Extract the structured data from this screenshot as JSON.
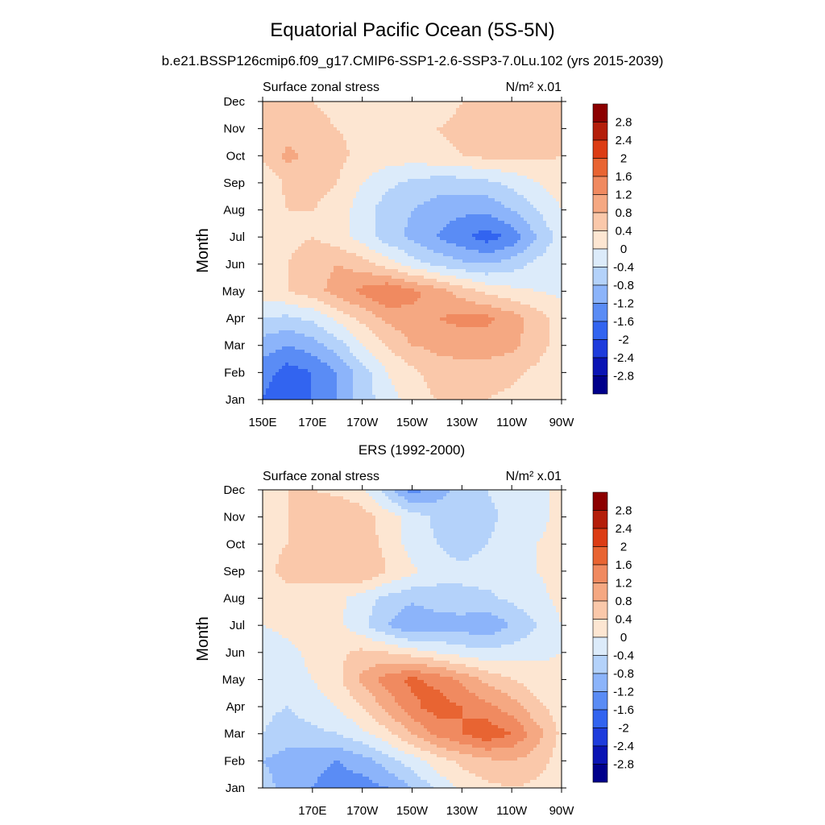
{
  "figure": {
    "title": "Equatorial Pacific Ocean (5S-5N)",
    "subtitle": "b.e21.BSSP126cmip6.f09_g17.CMIP6-SSP1-2.6-SSP3-7.0Lu.102 (yrs 2015-2039)",
    "second_panel_title": "ERS (1992-2000)"
  },
  "colors": {
    "levels": [
      "#00008b",
      "#0a14b4",
      "#1e3cdc",
      "#3264f0",
      "#5a8cf5",
      "#8cb4fa",
      "#b4d2fa",
      "#dcebfa",
      "#fde6d2",
      "#fac8aa",
      "#f5a882",
      "#f08a60",
      "#e86432",
      "#dc3c14",
      "#b41e0a",
      "#8c0000"
    ]
  },
  "chart_data": [
    {
      "type": "heatmap",
      "panel_label_left": "Surface zonal stress",
      "units": "N/m² x.01",
      "ylabel": "Month",
      "x_tick_labels": [
        "150E",
        "170E",
        "170W",
        "150W",
        "130W",
        "110W",
        "90W"
      ],
      "y_tick_labels": [
        "Jan",
        "Feb",
        "Mar",
        "Apr",
        "May",
        "Jun",
        "Jul",
        "Aug",
        "Sep",
        "Oct",
        "Nov",
        "Dec"
      ],
      "x_range_lon_east": [
        150,
        270
      ],
      "colorbar_labels": [
        "2.8",
        "2.4",
        "2",
        "1.6",
        "1.2",
        "0.8",
        "0.4",
        "0",
        "-0.4",
        "-0.8",
        "-1.2",
        "-1.6",
        "-2",
        "-2.4",
        "-2.8"
      ],
      "x_lon_east": [
        150,
        160,
        170,
        180,
        190,
        200,
        210,
        220,
        230,
        240,
        250,
        260,
        270
      ],
      "y_month": [
        1,
        2,
        3,
        4,
        5,
        6,
        7,
        8,
        9,
        10,
        11,
        12
      ],
      "values": [
        [
          -1.6,
          -2.0,
          -1.6,
          -1.2,
          -0.6,
          -0.2,
          0.2,
          0.4,
          0.4,
          0.4,
          0.3,
          0.2,
          0.0
        ],
        [
          -1.4,
          -1.8,
          -1.6,
          -1.2,
          -0.6,
          0.0,
          0.3,
          0.6,
          0.6,
          0.6,
          0.5,
          0.3,
          0.0
        ],
        [
          -1.0,
          -1.2,
          -1.0,
          -0.6,
          0.0,
          0.4,
          0.8,
          0.9,
          1.0,
          1.0,
          0.9,
          0.6,
          0.2
        ],
        [
          -0.4,
          -0.5,
          -0.3,
          0.1,
          0.5,
          0.9,
          1.1,
          1.2,
          1.3,
          1.3,
          1.0,
          0.6,
          0.2
        ],
        [
          0.2,
          0.4,
          0.6,
          1.0,
          1.3,
          1.6,
          1.3,
          1.0,
          0.6,
          0.3,
          0.1,
          0.0,
          -0.1
        ],
        [
          0.2,
          0.4,
          0.6,
          0.8,
          0.6,
          0.2,
          -0.2,
          -0.5,
          -0.7,
          -0.8,
          -0.6,
          -0.3,
          -0.1
        ],
        [
          0.2,
          0.3,
          0.4,
          0.2,
          -0.2,
          -0.6,
          -0.9,
          -1.2,
          -1.5,
          -1.8,
          -1.5,
          -0.8,
          -0.2
        ],
        [
          0.2,
          0.4,
          0.4,
          0.2,
          -0.2,
          -0.6,
          -0.8,
          -1.0,
          -1.1,
          -1.1,
          -0.8,
          -0.4,
          0.0
        ],
        [
          0.0,
          0.5,
          0.6,
          0.4,
          0.0,
          -0.3,
          -0.5,
          -0.6,
          -0.6,
          -0.5,
          -0.3,
          0.0,
          0.2
        ],
        [
          0.5,
          0.9,
          0.7,
          0.5,
          0.3,
          0.2,
          0.2,
          0.3,
          0.4,
          0.5,
          0.5,
          0.5,
          0.4
        ],
        [
          0.6,
          0.6,
          0.5,
          0.4,
          0.3,
          0.2,
          0.2,
          0.4,
          0.5,
          0.6,
          0.6,
          0.5,
          0.4
        ],
        [
          0.5,
          0.5,
          0.4,
          0.3,
          0.2,
          0.1,
          0.1,
          0.2,
          0.4,
          0.5,
          0.6,
          0.5,
          0.4
        ]
      ]
    },
    {
      "type": "heatmap",
      "panel_label_left": "Surface zonal stress",
      "units": "N/m² x.01",
      "ylabel": "Month",
      "x_tick_labels": [
        "170E",
        "170W",
        "150W",
        "130W",
        "110W",
        "90W"
      ],
      "y_tick_labels": [
        "Jan",
        "Feb",
        "Mar",
        "Apr",
        "May",
        "Jun",
        "Jul",
        "Aug",
        "Sep",
        "Oct",
        "Nov",
        "Dec"
      ],
      "x_range_lon_east": [
        150,
        270
      ],
      "colorbar_labels": [
        "2.8",
        "2.4",
        "2",
        "1.6",
        "1.2",
        "0.8",
        "0.4",
        "0",
        "-0.4",
        "-0.8",
        "-1.2",
        "-1.6",
        "-2",
        "-2.4",
        "-2.8"
      ],
      "x_lon_east": [
        150,
        160,
        170,
        180,
        190,
        200,
        210,
        220,
        230,
        240,
        250,
        260,
        270
      ],
      "y_month": [
        1,
        2,
        3,
        4,
        5,
        6,
        7,
        8,
        9,
        10,
        11,
        12
      ],
      "values": [
        [
          -0.6,
          -1.0,
          -1.2,
          -1.4,
          -1.4,
          -1.2,
          -0.8,
          -0.3,
          0.1,
          0.3,
          0.4,
          0.3,
          0.2
        ],
        [
          -0.8,
          -1.0,
          -1.1,
          -1.2,
          -1.0,
          -0.6,
          -0.2,
          0.2,
          0.5,
          0.7,
          0.8,
          0.6,
          0.2
        ],
        [
          -0.4,
          -0.6,
          -0.5,
          -0.4,
          -0.1,
          0.3,
          0.8,
          1.3,
          1.6,
          1.9,
          1.6,
          1.0,
          0.3
        ],
        [
          -0.3,
          -0.4,
          -0.2,
          0.0,
          0.4,
          0.9,
          1.5,
          1.8,
          1.6,
          1.3,
          1.0,
          0.5,
          0.2
        ],
        [
          -0.1,
          -0.2,
          0.0,
          0.3,
          0.9,
          1.4,
          1.7,
          1.5,
          1.1,
          0.7,
          0.4,
          0.2,
          0.1
        ],
        [
          -0.2,
          -0.1,
          0.1,
          0.3,
          0.5,
          0.4,
          0.2,
          0.0,
          -0.2,
          -0.3,
          -0.2,
          -0.1,
          0.0
        ],
        [
          0.0,
          0.1,
          0.2,
          0.1,
          -0.3,
          -0.8,
          -1.2,
          -1.0,
          -1.0,
          -1.1,
          -0.8,
          -0.4,
          0.0
        ],
        [
          0.1,
          0.3,
          0.3,
          0.1,
          -0.2,
          -0.5,
          -0.7,
          -0.6,
          -0.5,
          -0.5,
          -0.3,
          -0.1,
          0.1
        ],
        [
          0.3,
          0.5,
          0.5,
          0.6,
          0.8,
          0.4,
          0.1,
          -0.2,
          -0.3,
          -0.2,
          -0.1,
          0.0,
          0.1
        ],
        [
          0.3,
          0.4,
          0.4,
          0.5,
          0.6,
          0.3,
          -0.2,
          -0.4,
          -0.6,
          -0.4,
          -0.2,
          0.0,
          0.1
        ],
        [
          0.2,
          0.4,
          0.6,
          0.8,
          0.6,
          0.2,
          -0.2,
          -0.5,
          -0.6,
          -0.5,
          -0.3,
          -0.1,
          0.1
        ],
        [
          0.3,
          0.4,
          0.4,
          0.3,
          0.1,
          -0.6,
          -1.4,
          -1.0,
          -0.6,
          -0.4,
          -0.2,
          -0.1,
          0.1
        ]
      ]
    }
  ]
}
